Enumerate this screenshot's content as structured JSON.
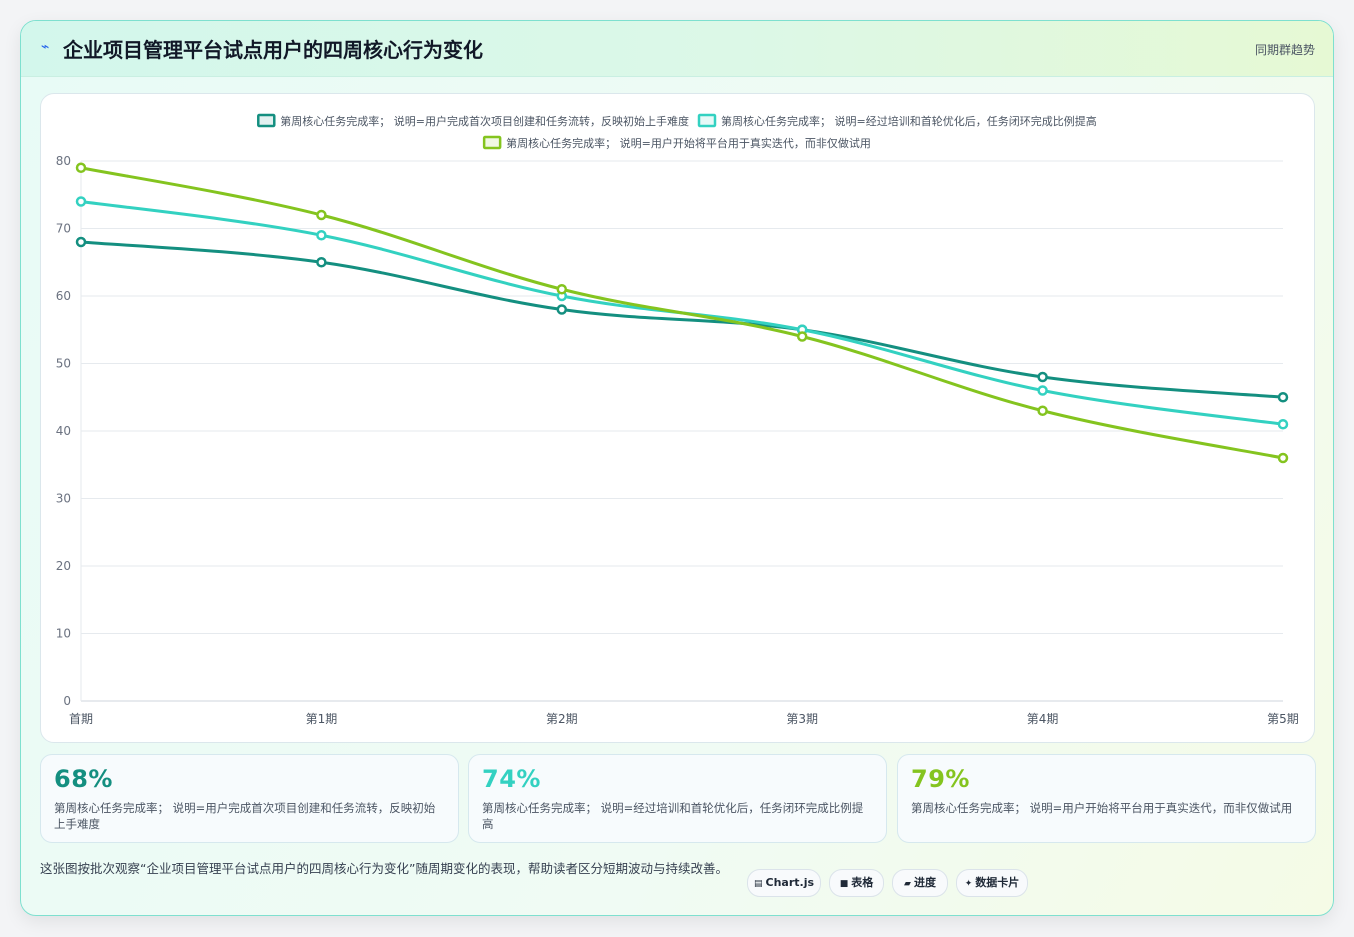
{
  "header": {
    "icon": "chart-line-icon",
    "title": "企业项目管理平台试点用户的四周核心行为变化",
    "tag": "同期群趋势"
  },
  "chart_data": {
    "type": "line",
    "categories": [
      "首期",
      "第1期",
      "第2期",
      "第3期",
      "第4期",
      "第5期"
    ],
    "series": [
      {
        "name": "第周核心任务完成率； 说明=用户完成首次项目创建和任务流转，反映初始上手难度",
        "values": [
          68,
          65,
          58,
          55,
          48,
          45
        ],
        "color": "#148f80"
      },
      {
        "name": "第周核心任务完成率； 说明=经过培训和首轮优化后，任务闭环完成比例提高",
        "values": [
          74,
          69,
          60,
          55,
          46,
          41
        ],
        "color": "#33d1c1"
      },
      {
        "name": "第周核心任务完成率； 说明=用户开始将平台用于真实迭代，而非仅做试用",
        "values": [
          79,
          72,
          61,
          54,
          43,
          36
        ],
        "color": "#84c41f"
      }
    ],
    "ylim": [
      0,
      80
    ],
    "yticks": [
      0,
      10,
      20,
      30,
      40,
      50,
      60,
      70,
      80
    ],
    "grid": true,
    "legend_position": "top-center"
  },
  "stats": [
    {
      "value": "68%",
      "label": "第周核心任务完成率； 说明=用户完成首次项目创建和任务流转，反映初始上手难度",
      "color": "#148f80"
    },
    {
      "value": "74%",
      "label": "第周核心任务完成率； 说明=经过培训和首轮优化后，任务闭环完成比例提高",
      "color": "#33d1c1"
    },
    {
      "value": "79%",
      "label": "第周核心任务完成率； 说明=用户开始将平台用于真实迭代，而非仅做试用",
      "color": "#84c41f"
    }
  ],
  "footer": {
    "text": "这张图按批次观察“企业项目管理平台试点用户的四周核心行为变化”随周期变化的表现，帮助读者区分短期波动与持续改善。",
    "pills": [
      {
        "icon": "▤",
        "label": "Chart.js"
      },
      {
        "icon": "■",
        "label": "表格"
      },
      {
        "icon": "▰",
        "label": "进度"
      },
      {
        "icon": "✦",
        "label": "数据卡片"
      }
    ]
  }
}
